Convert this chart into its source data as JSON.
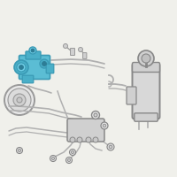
{
  "bg_color": "#f0f0eb",
  "highlight_color": "#5bbdd4",
  "highlight_edge": "#3a9ab5",
  "highlight_dark": "#2d7d96",
  "line_color": "#b0b0b0",
  "dark_color": "#999999",
  "part_color": "#d0d0d0",
  "part_edge": "#888888",
  "fig_width": 2.0,
  "fig_height": 2.0,
  "dpi": 100
}
